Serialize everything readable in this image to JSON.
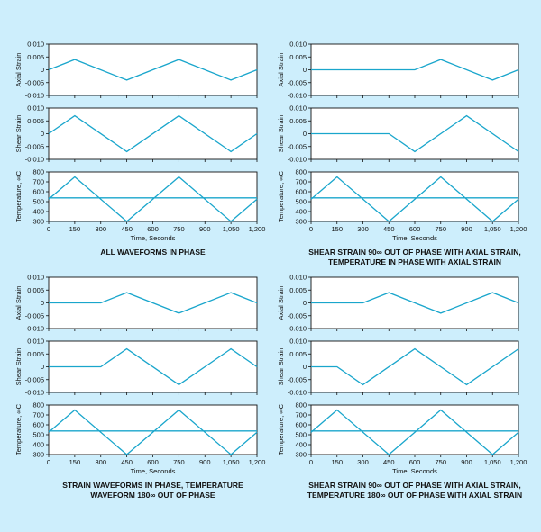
{
  "background": "#cdeefc",
  "line_color": "#1aa6cc",
  "panel_fill": "#ffffff",
  "chart_data": [
    {
      "type": "line",
      "caption": [
        "ALL WAVEFORMS IN PHASE"
      ],
      "xlabel": "Time, Seconds",
      "xlim": [
        0,
        1200
      ],
      "xticks": [
        0,
        150,
        300,
        450,
        600,
        750,
        900,
        "1,050",
        "1,200"
      ],
      "subplots": [
        {
          "ylabel": "Axial Strain",
          "ylim": [
            -0.01,
            0.01
          ],
          "yticks": [
            "0.010",
            "0.005",
            "0",
            "-0.005",
            "-0.010"
          ],
          "series": [
            {
              "x": [
                0,
                150,
                450,
                750,
                1050,
                1200
              ],
              "y": [
                0,
                0.004,
                -0.004,
                0.004,
                -0.004,
                0
              ]
            }
          ]
        },
        {
          "ylabel": "Shear Strain",
          "ylim": [
            -0.01,
            0.01
          ],
          "yticks": [
            "0.010",
            "0.005",
            "0",
            "-0.005",
            "-0.010"
          ],
          "series": [
            {
              "x": [
                0,
                150,
                450,
                750,
                1050,
                1200
              ],
              "y": [
                0,
                0.007,
                -0.007,
                0.007,
                -0.007,
                0
              ]
            }
          ]
        },
        {
          "ylabel": "Temperature, ∞C",
          "ylim": [
            300,
            800
          ],
          "yticks": [
            "800",
            "700",
            "600",
            "500",
            "400",
            "300"
          ],
          "series": [
            {
              "x": [
                0,
                150,
                450,
                750,
                1050,
                1200
              ],
              "y": [
                525,
                750,
                300,
                750,
                300,
                525
              ]
            },
            {
              "x": [
                0,
                1200
              ],
              "y": [
                538,
                538
              ]
            }
          ]
        }
      ]
    },
    {
      "type": "line",
      "caption": [
        "SHEAR STRAIN 90∞ OUT OF PHASE WITH AXIAL STRAIN,",
        "TEMPERATURE IN PHASE WITH AXIAL STRAIN"
      ],
      "xlabel": "Time, Seconds",
      "xlim": [
        0,
        1200
      ],
      "xticks": [
        0,
        150,
        300,
        450,
        600,
        750,
        900,
        "1,050",
        "1,200"
      ],
      "subplots": [
        {
          "ylabel": "Axial Strain",
          "ylim": [
            -0.01,
            0.01
          ],
          "yticks": [
            "0.010",
            "0.005",
            "0",
            "-0.005",
            "-0.010"
          ],
          "series": [
            {
              "x": [
                0,
                600,
                750,
                1050,
                1200
              ],
              "y": [
                0,
                0,
                0.004,
                -0.004,
                0
              ]
            }
          ]
        },
        {
          "ylabel": "Shear Strain",
          "ylim": [
            -0.01,
            0.01
          ],
          "yticks": [
            "0.010",
            "0.005",
            "0",
            "-0.005",
            "-0.010"
          ],
          "series": [
            {
              "x": [
                0,
                450,
                600,
                900,
                1200
              ],
              "y": [
                0,
                0,
                -0.007,
                0.007,
                -0.007
              ]
            }
          ]
        },
        {
          "ylabel": "Temperature, ∞C",
          "ylim": [
            300,
            800
          ],
          "yticks": [
            "800",
            "700",
            "600",
            "500",
            "400",
            "300"
          ],
          "series": [
            {
              "x": [
                0,
                150,
                450,
                750,
                1050,
                1200
              ],
              "y": [
                525,
                750,
                300,
                750,
                300,
                525
              ]
            },
            {
              "x": [
                0,
                1200
              ],
              "y": [
                538,
                538
              ]
            }
          ]
        }
      ]
    },
    {
      "type": "line",
      "caption": [
        "STRAIN WAVEFORMS IN PHASE, TEMPERATURE",
        "WAVEFORM 180∞ OUT OF PHASE"
      ],
      "xlabel": "Time, Seconds",
      "xlim": [
        0,
        1200
      ],
      "xticks": [
        0,
        150,
        300,
        450,
        600,
        750,
        900,
        "1,050",
        "1,200"
      ],
      "subplots": [
        {
          "ylabel": "Axial Strain",
          "ylim": [
            -0.01,
            0.01
          ],
          "yticks": [
            "0.010",
            "0.005",
            "0",
            "-0.005",
            "-0.010"
          ],
          "series": [
            {
              "x": [
                0,
                300,
                450,
                750,
                1050,
                1200
              ],
              "y": [
                0,
                0,
                0.004,
                -0.004,
                0.004,
                0
              ]
            }
          ]
        },
        {
          "ylabel": "Shear Strain",
          "ylim": [
            -0.01,
            0.01
          ],
          "yticks": [
            "0.010",
            "0.005",
            "0",
            "-0.005",
            "-0.010"
          ],
          "series": [
            {
              "x": [
                0,
                300,
                450,
                750,
                1050,
                1200
              ],
              "y": [
                0,
                0,
                0.007,
                -0.007,
                0.007,
                0
              ]
            }
          ]
        },
        {
          "ylabel": "Temperature, ∞C",
          "ylim": [
            300,
            800
          ],
          "yticks": [
            "800",
            "700",
            "600",
            "500",
            "400",
            "300"
          ],
          "series": [
            {
              "x": [
                0,
                150,
                450,
                750,
                1050,
                1200
              ],
              "y": [
                525,
                750,
                300,
                750,
                300,
                525
              ]
            },
            {
              "x": [
                0,
                1200
              ],
              "y": [
                538,
                538
              ]
            }
          ]
        }
      ]
    },
    {
      "type": "line",
      "caption": [
        "SHEAR STRAIN 90∞ OUT OF PHASE WITH AXIAL STRAIN,",
        "TEMPERATURE 180∞ OUT OF PHASE WITH AXIAL STRAIN"
      ],
      "xlabel": "Time, Seconds",
      "xlim": [
        0,
        1200
      ],
      "xticks": [
        0,
        150,
        300,
        450,
        600,
        750,
        900,
        "1,050",
        "1,200"
      ],
      "subplots": [
        {
          "ylabel": "Axial Strain",
          "ylim": [
            -0.01,
            0.01
          ],
          "yticks": [
            "0.010",
            "0.005",
            "0",
            "-0.005",
            "-0.010"
          ],
          "series": [
            {
              "x": [
                0,
                300,
                450,
                750,
                1050,
                1200
              ],
              "y": [
                0,
                0,
                0.004,
                -0.004,
                0.004,
                0
              ]
            }
          ]
        },
        {
          "ylabel": "Shear Strain",
          "ylim": [
            -0.01,
            0.01
          ],
          "yticks": [
            "0.010",
            "0.005",
            "0",
            "-0.005",
            "-0.010"
          ],
          "series": [
            {
              "x": [
                0,
                150,
                300,
                600,
                900,
                1200
              ],
              "y": [
                0,
                0,
                -0.007,
                0.007,
                -0.007,
                0.007
              ]
            }
          ]
        },
        {
          "ylabel": "Temperature, ∞C",
          "ylim": [
            300,
            800
          ],
          "yticks": [
            "800",
            "700",
            "600",
            "500",
            "400",
            "300"
          ],
          "series": [
            {
              "x": [
                0,
                150,
                450,
                750,
                1050,
                1200
              ],
              "y": [
                525,
                750,
                300,
                750,
                300,
                525
              ]
            },
            {
              "x": [
                0,
                1200
              ],
              "y": [
                538,
                538
              ]
            }
          ]
        }
      ]
    }
  ]
}
